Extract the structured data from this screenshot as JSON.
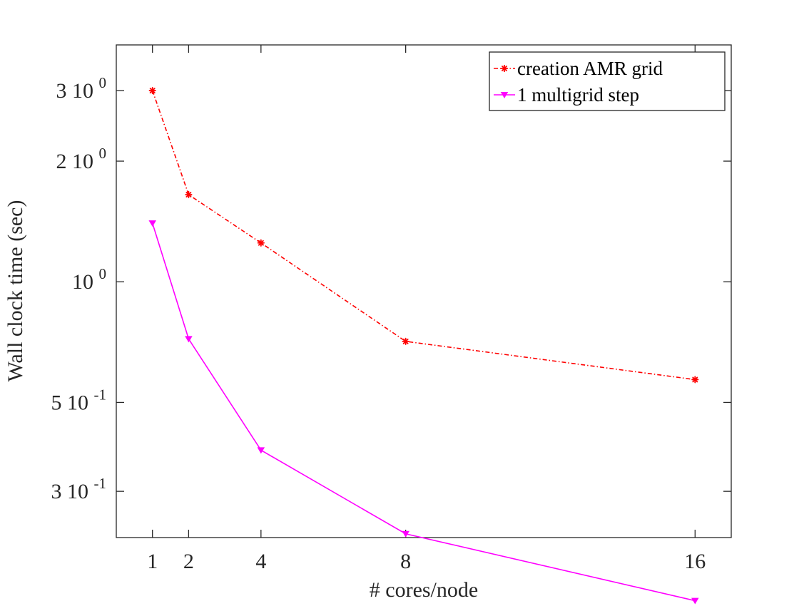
{
  "chart_data": {
    "type": "line",
    "title": "",
    "xlabel": "# cores/node",
    "ylabel": "Wall clock time (sec)",
    "x": [
      1,
      2,
      4,
      8,
      16
    ],
    "x_tick_labels": [
      "1",
      "2",
      "4",
      "8",
      "16"
    ],
    "xlim": [
      0,
      17
    ],
    "ylim": [
      0.23,
      3.9
    ],
    "yscale": "log",
    "y_ticks": [
      {
        "value": 0.3,
        "mantissa": "3 10",
        "exponent": "-1"
      },
      {
        "value": 0.5,
        "mantissa": "5 10",
        "exponent": "-1"
      },
      {
        "value": 1.0,
        "mantissa": "10",
        "exponent": "0"
      },
      {
        "value": 2.0,
        "mantissa": "2 10",
        "exponent": "0"
      },
      {
        "value": 3.0,
        "mantissa": "3 10",
        "exponent": "0"
      }
    ],
    "grid": false,
    "legend_position": "top-right",
    "series": [
      {
        "name": "creation AMR grid",
        "values": [
          3.0,
          1.65,
          1.25,
          0.71,
          0.57
        ],
        "color": "#ff0000",
        "line_style": "dash-dot",
        "marker": "asterisk"
      },
      {
        "name": "1 multigrid step",
        "values": [
          1.4,
          0.72,
          0.38,
          0.235,
          0.16
        ],
        "color": "#ff00ff",
        "line_style": "solid",
        "marker": "triangle-down"
      }
    ]
  }
}
